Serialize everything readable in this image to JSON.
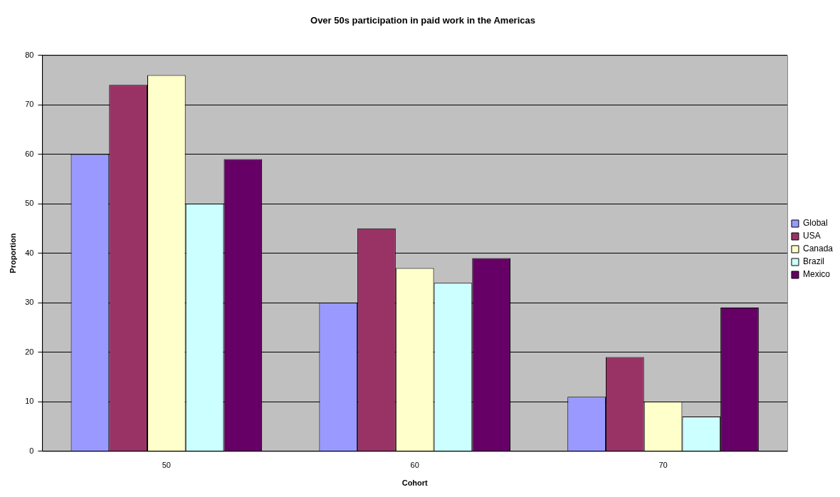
{
  "chart_data": {
    "type": "bar",
    "title": "Over 50s participation in paid work in the Americas",
    "xlabel": "Cohort",
    "ylabel": "Proportion",
    "categories": [
      "50",
      "60",
      "70"
    ],
    "series": [
      {
        "name": "Global",
        "color": "#9999ff",
        "values": [
          60,
          30,
          11
        ]
      },
      {
        "name": "USA",
        "color": "#993366",
        "values": [
          74,
          45,
          19
        ]
      },
      {
        "name": "Canada",
        "color": "#ffffcc",
        "values": [
          76,
          37,
          10
        ]
      },
      {
        "name": "Brazil",
        "color": "#ccffff",
        "values": [
          50,
          34,
          7
        ]
      },
      {
        "name": "Mexico",
        "color": "#660066",
        "values": [
          59,
          39,
          29
        ]
      }
    ],
    "ylim": [
      0,
      80
    ],
    "yticks": [
      0,
      10,
      20,
      30,
      40,
      50,
      60,
      70,
      80
    ],
    "grid": "y",
    "legend": "right"
  }
}
